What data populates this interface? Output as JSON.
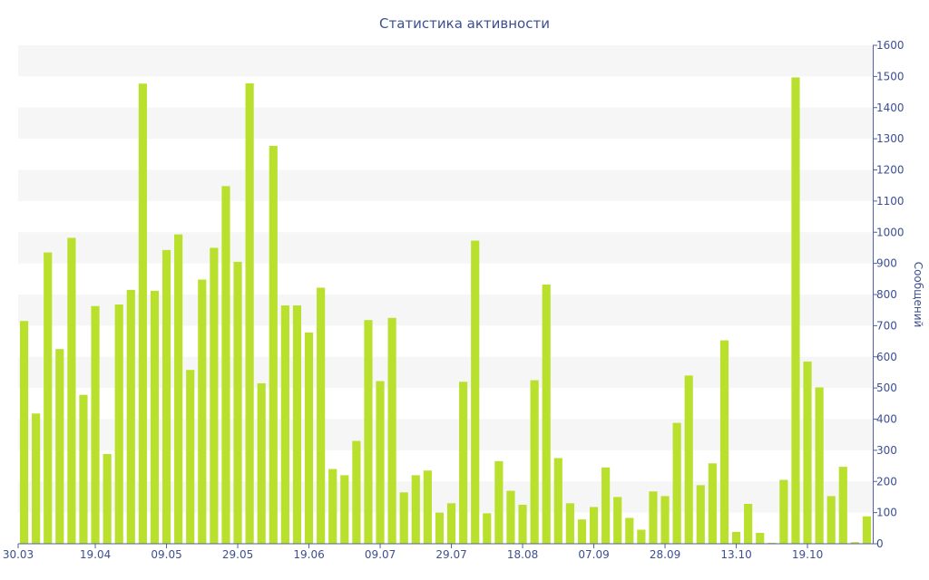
{
  "colors": {
    "bar": "#b8e02c",
    "band": "#f6f6f6",
    "axis": "#5060a0",
    "text": "#3d4f8f"
  },
  "chart_data": {
    "type": "bar",
    "title": "Статистика активности",
    "xlabel": "",
    "ylabel": "Сообщений",
    "ylim": [
      0,
      1600
    ],
    "y_ticks": [
      0,
      100,
      200,
      300,
      400,
      500,
      600,
      700,
      800,
      900,
      1000,
      1100,
      1200,
      1300,
      1400,
      1500,
      1600
    ],
    "y_axis_side": "right",
    "grid": "alternating horizontal bands",
    "x_tick_labels": [
      {
        "label": "30.03",
        "index": 0
      },
      {
        "label": "19.04",
        "index": 6
      },
      {
        "label": "09.05",
        "index": 12
      },
      {
        "label": "29.05",
        "index": 18
      },
      {
        "label": "19.06",
        "index": 24
      },
      {
        "label": "09.07",
        "index": 30
      },
      {
        "label": "29.07",
        "index": 36
      },
      {
        "label": "18.08",
        "index": 42
      },
      {
        "label": "07.09",
        "index": 48
      },
      {
        "label": "28.09",
        "index": 54
      },
      {
        "label": "13.10",
        "index": 60
      },
      {
        "label": "19.10",
        "index": 66
      }
    ],
    "values": [
      715,
      418,
      935,
      625,
      982,
      478,
      763,
      288,
      768,
      815,
      1477,
      812,
      943,
      993,
      558,
      848,
      950,
      1148,
      905,
      1478,
      515,
      1277,
      765,
      765,
      678,
      822,
      240,
      220,
      330,
      718,
      522,
      725,
      165,
      220,
      235,
      100,
      130,
      520,
      973,
      98,
      265,
      170,
      125,
      525,
      832,
      275,
      130,
      78,
      118,
      245,
      150,
      83,
      45,
      168,
      153,
      388,
      540,
      188,
      258,
      653,
      38,
      128,
      35,
      3,
      205,
      1497,
      585,
      502,
      153,
      247,
      5,
      88
    ]
  }
}
